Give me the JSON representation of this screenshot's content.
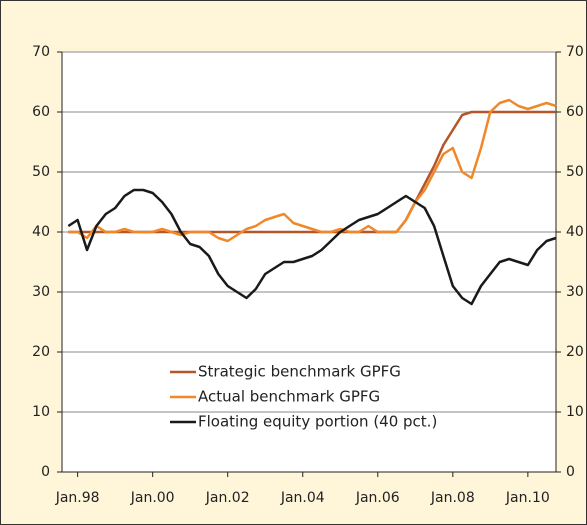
{
  "chart_data": {
    "type": "line",
    "x": [
      "1997-10",
      "1998-01",
      "1998-04",
      "1998-07",
      "1998-10",
      "1999-01",
      "1999-04",
      "1999-07",
      "1999-10",
      "2000-01",
      "2000-04",
      "2000-07",
      "2000-10",
      "2001-01",
      "2001-04",
      "2001-07",
      "2001-10",
      "2002-01",
      "2002-04",
      "2002-07",
      "2002-10",
      "2003-01",
      "2003-04",
      "2003-07",
      "2003-10",
      "2004-01",
      "2004-04",
      "2004-07",
      "2004-10",
      "2005-01",
      "2005-04",
      "2005-07",
      "2005-10",
      "2006-01",
      "2006-04",
      "2006-07",
      "2006-10",
      "2007-01",
      "2007-04",
      "2007-07",
      "2007-10",
      "2008-01",
      "2008-04",
      "2008-07",
      "2008-10",
      "2009-01",
      "2009-04",
      "2009-07",
      "2009-10",
      "2010-01",
      "2010-04",
      "2010-07",
      "2010-10"
    ],
    "series": [
      {
        "name": "Strategic benchmark GPFG",
        "color": "#b5562a",
        "values": [
          40,
          40,
          40,
          40,
          40,
          40,
          40,
          40,
          40,
          40,
          40,
          40,
          40,
          40,
          40,
          40,
          40,
          40,
          40,
          40,
          40,
          40,
          40,
          40,
          40,
          40,
          40,
          40,
          40,
          40,
          40,
          40,
          40,
          40,
          40,
          40,
          42,
          45,
          48,
          51,
          54.5,
          57,
          59.5,
          60,
          60,
          60,
          60,
          60,
          60,
          60,
          60,
          60,
          60
        ]
      },
      {
        "name": "Actual benchmark GPFG",
        "color": "#f0882a",
        "values": [
          40,
          40,
          39,
          41,
          40,
          40,
          40.5,
          40,
          40,
          40,
          40.5,
          40,
          39.5,
          40,
          40,
          40,
          39,
          38.5,
          39.5,
          40.5,
          41,
          42,
          42.5,
          43,
          41.5,
          41,
          40.5,
          40,
          40,
          40.5,
          40,
          40,
          41,
          40,
          40,
          40,
          42,
          45,
          47,
          50,
          53,
          54,
          50,
          49,
          54,
          60,
          61.5,
          62,
          61,
          60.5,
          61,
          61.5,
          61
        ]
      },
      {
        "name": "Floating equity portion (40 pct.)",
        "color": "#1a1a1a",
        "values": [
          41,
          42,
          37,
          41,
          43,
          44,
          46,
          47,
          47,
          46.5,
          45,
          43,
          40,
          38,
          37.5,
          36,
          33,
          31,
          30,
          29,
          30.5,
          33,
          34,
          35,
          35,
          35.5,
          36,
          37,
          38.5,
          40,
          41,
          42,
          42.5,
          43,
          44,
          45,
          46,
          45,
          44,
          41,
          36,
          31,
          29,
          28,
          31,
          33,
          35,
          35.5,
          35,
          34.5,
          37,
          38.5,
          39
        ]
      }
    ],
    "xlim": [
      "1997-08",
      "2010-10"
    ],
    "xticks": [
      {
        "value": "1998-01",
        "label": "Jan.98"
      },
      {
        "value": "2000-01",
        "label": "Jan.00"
      },
      {
        "value": "2002-01",
        "label": "Jan.02"
      },
      {
        "value": "2004-01",
        "label": "Jan.04"
      },
      {
        "value": "2006-01",
        "label": "Jan.06"
      },
      {
        "value": "2008-01",
        "label": "Jan.08"
      },
      {
        "value": "2010-01",
        "label": "Jan.10"
      }
    ],
    "ylim": [
      0,
      70
    ],
    "yticks": [
      0,
      10,
      20,
      30,
      40,
      50,
      60,
      70
    ],
    "y2lim": [
      0,
      70
    ],
    "y2ticks": [
      0,
      10,
      20,
      30,
      40,
      50,
      60,
      70
    ],
    "grid": true,
    "legend": "lower center"
  }
}
